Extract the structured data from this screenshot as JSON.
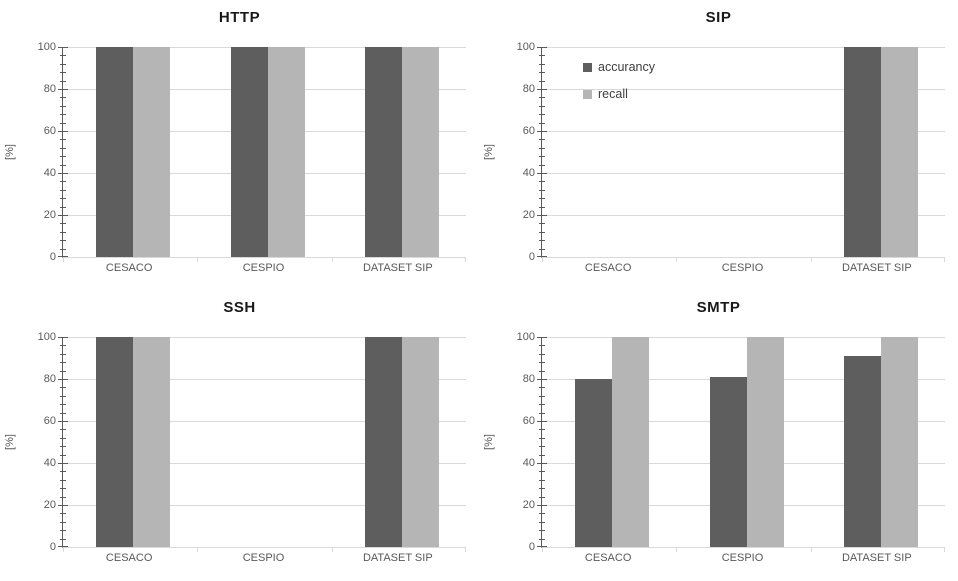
{
  "figure": {
    "background": "#ffffff"
  },
  "colors": {
    "accurancy": "#5e5e5e",
    "recall": "#b5b5b5",
    "grid": "#d9d9d9",
    "axis_line": "#595959",
    "axis_line_light": "#d9d9d9",
    "tick_text": "#595959",
    "title_text": "#1a1a1a",
    "legend_text": "#404040"
  },
  "axis": {
    "ylabel": "[%]",
    "ylim": [
      0,
      100
    ],
    "major_ticks": [
      0,
      20,
      40,
      60,
      80,
      100
    ],
    "minor_unit": 4,
    "grid": true
  },
  "legend": {
    "position": "upper-left",
    "items": [
      {
        "label": "accurancy",
        "color_key": "accurancy"
      },
      {
        "label": "recall",
        "color_key": "recall"
      }
    ]
  },
  "chart_data": [
    {
      "type": "bar",
      "title": "HTTP",
      "categories": [
        "CESACO",
        "CESPIO",
        "DATASET SIP"
      ],
      "series": [
        {
          "name": "accurancy",
          "values": [
            100,
            100,
            100
          ]
        },
        {
          "name": "recall",
          "values": [
            100,
            100,
            100
          ]
        }
      ],
      "ylabel": "[%]",
      "ylim": [
        0,
        100
      ],
      "legend": false
    },
    {
      "type": "bar",
      "title": "SIP",
      "categories": [
        "CESACO",
        "CESPIO",
        "DATASET SIP"
      ],
      "series": [
        {
          "name": "accurancy",
          "values": [
            0,
            0,
            100
          ]
        },
        {
          "name": "recall",
          "values": [
            0,
            0,
            100
          ]
        }
      ],
      "ylabel": "[%]",
      "ylim": [
        0,
        100
      ],
      "legend": true
    },
    {
      "type": "bar",
      "title": "SSH",
      "categories": [
        "CESACO",
        "CESPIO",
        "DATASET SIP"
      ],
      "series": [
        {
          "name": "accurancy",
          "values": [
            100,
            0,
            100
          ]
        },
        {
          "name": "recall",
          "values": [
            100,
            0,
            100
          ]
        }
      ],
      "ylabel": "[%]",
      "ylim": [
        0,
        100
      ],
      "legend": false
    },
    {
      "type": "bar",
      "title": "SMTP",
      "categories": [
        "CESACO",
        "CESPIO",
        "DATASET SIP"
      ],
      "series": [
        {
          "name": "accurancy",
          "values": [
            80,
            81,
            91
          ]
        },
        {
          "name": "recall",
          "values": [
            100,
            100,
            100
          ]
        }
      ],
      "ylabel": "[%]",
      "ylim": [
        0,
        100
      ],
      "legend": false
    }
  ]
}
